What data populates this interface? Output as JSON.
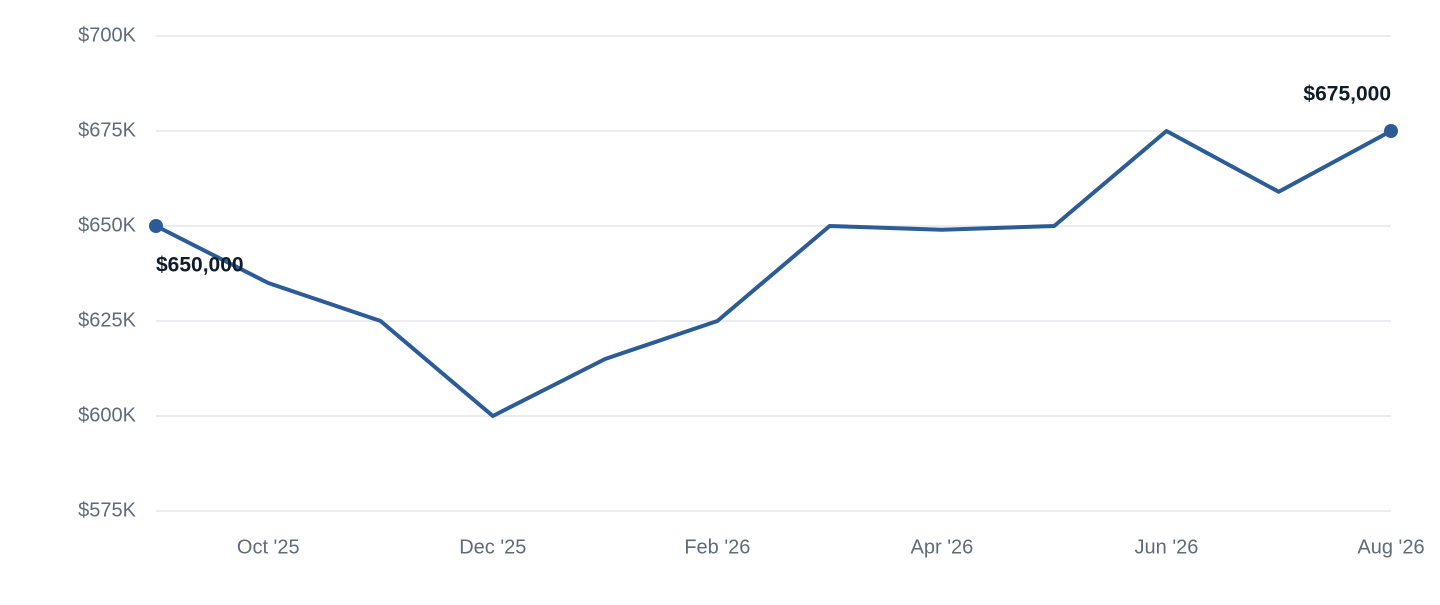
{
  "chart_data": {
    "type": "line",
    "categories": [
      null,
      "Oct '25",
      null,
      "Dec '25",
      null,
      "Feb '26",
      null,
      "Apr '26",
      null,
      "Jun '26",
      null,
      "Aug '26"
    ],
    "values": [
      650000,
      635000,
      625000,
      600000,
      615000,
      625000,
      650000,
      649000,
      650000,
      675000,
      659000,
      675000
    ],
    "value_labels": [
      "$650,000",
      null,
      null,
      null,
      null,
      null,
      null,
      null,
      null,
      null,
      null,
      "$675,000"
    ],
    "color": "#2b5c97",
    "ylim": [
      575000,
      700000
    ],
    "yticks": [
      {
        "value": 575000,
        "label": "$575K"
      },
      {
        "value": 600000,
        "label": "$600K"
      },
      {
        "value": 625000,
        "label": "$625K"
      },
      {
        "value": 650000,
        "label": "$650K"
      },
      {
        "value": 675000,
        "label": "$675K"
      },
      {
        "value": 700000,
        "label": "$700K"
      }
    ],
    "grid": true
  }
}
